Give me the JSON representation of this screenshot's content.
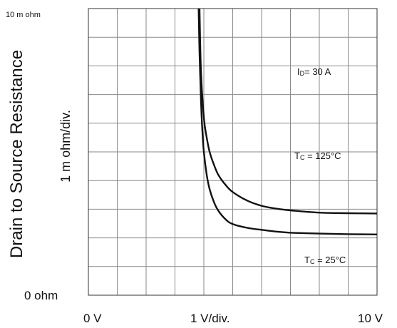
{
  "chart_data": {
    "type": "line",
    "title": "",
    "ylabel": "Drain to Source Resistance",
    "ylabel_secondary": "1 m ohm/div.",
    "xlabel": "1  V/div.",
    "x_tick_labels": {
      "min": "0  V",
      "max": "10  V"
    },
    "y_tick_labels": {
      "max": "10 m ohm",
      "min": "0  ohm"
    },
    "xlim": [
      0,
      10
    ],
    "ylim": [
      0,
      10
    ],
    "grid": true,
    "grid_divisions": {
      "x": 10,
      "y": 10
    },
    "annotations": {
      "id_prefix": "I",
      "id_sub": "D",
      "id_value": "= 30 A",
      "tc_prefix": "T",
      "tc_sub": "C",
      "tc_hot_value": " = 125°C",
      "tc_cold_value": " = 25°C"
    },
    "series": [
      {
        "x": [
          3.85,
          3.9,
          4.0,
          4.1,
          4.2,
          4.35,
          4.5,
          4.75,
          5.0,
          5.5,
          6.0,
          6.5,
          7.0,
          8.0,
          9.0,
          10.0
        ],
        "y": [
          10.0,
          7.8,
          6.2,
          5.5,
          5.0,
          4.55,
          4.2,
          3.85,
          3.6,
          3.3,
          3.12,
          3.02,
          2.96,
          2.88,
          2.86,
          2.85
        ]
      },
      {
        "x": [
          3.82,
          3.85,
          3.9,
          3.95,
          4.0,
          4.1,
          4.2,
          4.35,
          4.5,
          4.75,
          5.0,
          5.5,
          6.0,
          6.5,
          7.0,
          8.0,
          9.0,
          10.0
        ],
        "y": [
          10.0,
          8.5,
          6.8,
          5.7,
          5.0,
          4.2,
          3.7,
          3.25,
          2.95,
          2.65,
          2.48,
          2.35,
          2.28,
          2.22,
          2.18,
          2.15,
          2.13,
          2.12
        ]
      }
    ],
    "line_color": "#111111",
    "grid_color": "#8a8a8a"
  }
}
